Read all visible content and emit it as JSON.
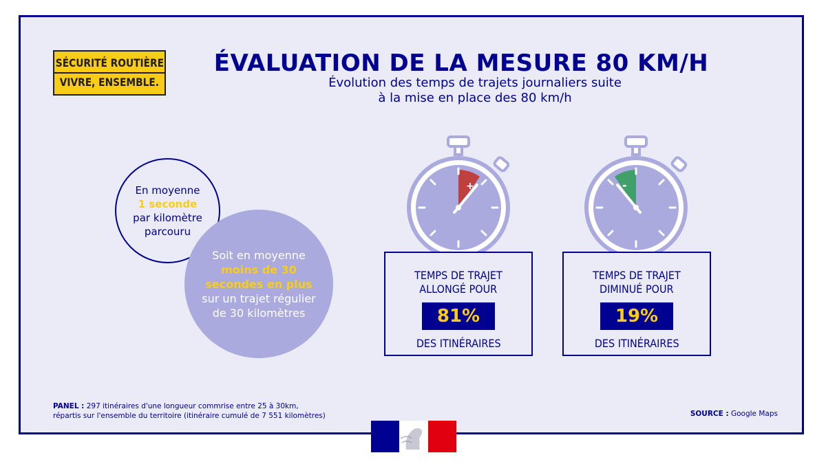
{
  "badge": {
    "line1": "SÉCURITÉ ROUTIÈRE",
    "line2": "VIVRE, ENSEMBLE."
  },
  "header": {
    "title": "ÉVALUATION DE LA MESURE 80 KM/H",
    "subtitle_line1": "Évolution des temps de trajets journaliers suite",
    "subtitle_line2": "à la mise en place des 80 km/h"
  },
  "circle_small": {
    "line1": "En moyenne",
    "highlight": "1 seconde",
    "line3": "par kilomètre",
    "line4": "parcouru"
  },
  "circle_big": {
    "line1": "Soit en moyenne",
    "highlight1": "moins de 30",
    "highlight2": "secondes en plus",
    "line4": "sur un trajet régulier",
    "line5": "de 30 kilomètres"
  },
  "stat_longer": {
    "line1": "TEMPS DE TRAJET",
    "line2": "ALLONGÉ POUR",
    "value": "81%",
    "line3": "DES ITINÉRAIRES",
    "sign": "+"
  },
  "stat_shorter": {
    "line1": "TEMPS DE TRAJET",
    "line2": "DIMINUÉ POUR",
    "value": "19%",
    "line3": "DES ITINÉRAIRES",
    "sign": "-"
  },
  "footer": {
    "panel_label": "PANEL :",
    "panel_line1": " 297 itinéraires d'une longueur commrise entre 25 à 30km,",
    "panel_line2": "répartis sur l'ensemble du territoire (itinéraire cumulé de 7 551 kilomètres)",
    "source_label": "SOURCE :",
    "source_value": " Google Maps"
  },
  "colors": {
    "navy": "#000091",
    "yellow": "#f8cc17",
    "lavender": "#aaaadf",
    "background": "#ebebf7",
    "plus_red": "#c0403f",
    "minus_green": "#3fa06a",
    "flag_red": "#e1000f"
  },
  "icons": [
    "stopwatch-plus-icon",
    "stopwatch-minus-icon",
    "marianne-logo-icon"
  ]
}
